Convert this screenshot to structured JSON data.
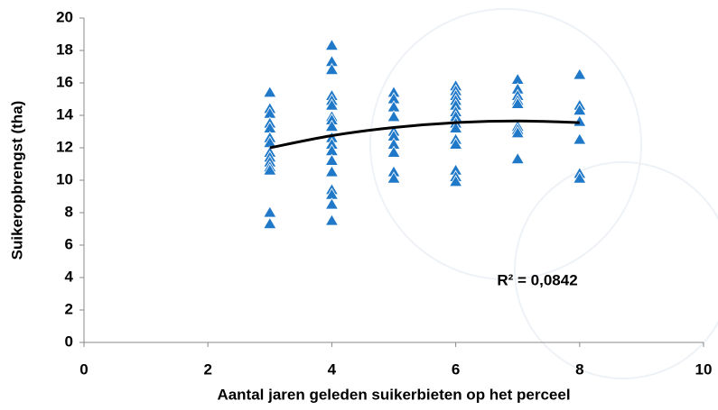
{
  "chart_data": {
    "type": "scatter",
    "x_label": "Aantal jaren geleden suikerbieten op het perceel",
    "y_label": "Suikeropbrengst (tha)",
    "annotation": "R² = 0,0842",
    "xlim": [
      0,
      10
    ],
    "xticks": [
      0,
      2,
      4,
      6,
      8,
      10
    ],
    "ylim": [
      0,
      20
    ],
    "yticks": [
      0,
      2,
      4,
      6,
      8,
      10,
      12,
      14,
      16,
      18,
      20
    ],
    "series": [
      {
        "color": "#1f78c8",
        "x": [
          3,
          3,
          3,
          3,
          3,
          3,
          3,
          3,
          3,
          3,
          3,
          3,
          3,
          3,
          4,
          4,
          4,
          4,
          4,
          4,
          4,
          4,
          4,
          4,
          4,
          4,
          4,
          4,
          4,
          4,
          4,
          4,
          5,
          5,
          5,
          5,
          5,
          5,
          5,
          5,
          5,
          5,
          6,
          6,
          6,
          6,
          6,
          6,
          6,
          6,
          6,
          6,
          6,
          6,
          6,
          6,
          7,
          7,
          7,
          7,
          7,
          7,
          7,
          7,
          7,
          8,
          8,
          8,
          8,
          8,
          8,
          8
        ],
        "values": [
          15.4,
          14.4,
          14.1,
          13.5,
          13.2,
          12.6,
          12.3,
          11.7,
          11.4,
          11.1,
          10.8,
          10.6,
          8.0,
          7.3,
          18.3,
          17.3,
          16.8,
          15.2,
          14.9,
          14.6,
          13.9,
          13.7,
          13.3,
          12.6,
          12.2,
          11.8,
          11.2,
          10.5,
          9.4,
          9.1,
          8.5,
          7.5,
          15.4,
          15.0,
          14.5,
          13.9,
          13.0,
          12.7,
          12.2,
          11.7,
          10.5,
          10.1,
          15.8,
          15.5,
          15.2,
          14.9,
          14.6,
          14.2,
          13.9,
          13.5,
          13.2,
          12.5,
          12.2,
          10.6,
          10.2,
          9.9,
          16.2,
          15.6,
          15.2,
          14.9,
          14.7,
          13.3,
          13.1,
          12.9,
          11.3,
          16.5,
          14.6,
          14.3,
          13.6,
          12.5,
          10.4,
          10.1
        ]
      }
    ],
    "trendline": {
      "color": "#000000",
      "x": [
        3,
        4,
        5,
        6,
        7,
        8
      ],
      "values": [
        12.0,
        12.75,
        13.25,
        13.55,
        13.65,
        13.55
      ]
    }
  }
}
